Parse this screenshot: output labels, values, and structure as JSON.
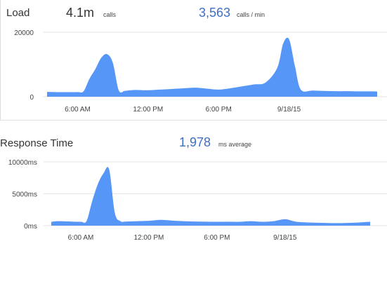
{
  "chart_data": [
    {
      "type": "area",
      "title": "Load",
      "summary": {
        "total_value": "4.1m",
        "total_unit": "calls",
        "rate_value": "3,563",
        "rate_unit": "calls / min"
      },
      "y_ticks": [
        "20000",
        "0"
      ],
      "ylim": [
        0,
        20000
      ],
      "x_ticks": [
        "6:00 AM",
        "12:00 PM",
        "6:00 PM",
        "9/18/15"
      ],
      "x_tick_hours": [
        6,
        12,
        18,
        24
      ],
      "xlim": [
        3.4,
        31.5
      ],
      "color": "#5596f7",
      "grid": true,
      "series": [
        {
          "x": [
            3.4,
            4,
            5,
            6,
            6.5,
            7,
            7.5,
            8,
            8.5,
            9,
            9.5,
            10,
            10.5,
            11,
            12,
            13,
            14,
            15,
            16,
            17,
            18,
            19,
            20,
            21,
            22,
            23,
            23.5,
            24,
            24.5,
            25,
            26,
            27,
            28,
            29,
            30,
            31,
            31.5
          ],
          "values": [
            1500,
            1450,
            1400,
            1450,
            1650,
            5500,
            8500,
            12000,
            13200,
            10500,
            2000,
            1800,
            2000,
            2100,
            2000,
            2200,
            2400,
            2600,
            2800,
            2500,
            2200,
            2600,
            3200,
            3800,
            4400,
            9000,
            16500,
            17800,
            9500,
            2200,
            1900,
            1800,
            1700,
            1700,
            1650,
            1650,
            1600
          ]
        }
      ]
    },
    {
      "type": "area",
      "title": "Response Time",
      "summary": {
        "rate_value": "1,978",
        "rate_unit": "ms average"
      },
      "y_ticks": [
        "10000ms",
        "5000ms",
        "0ms"
      ],
      "ylim": [
        0,
        10000
      ],
      "x_ticks": [
        "6:00 AM",
        "12:00 PM",
        "6:00 PM",
        "9/18/15"
      ],
      "x_tick_hours": [
        6,
        12,
        18,
        24
      ],
      "xlim": [
        3.4,
        31.5
      ],
      "color": "#5596f7",
      "grid": true,
      "series": [
        {
          "x": [
            3.4,
            4,
            5,
            6,
            6.5,
            7,
            7.5,
            8,
            8.5,
            9,
            9.5,
            10,
            11,
            12,
            13,
            14,
            15,
            16,
            17,
            18,
            19,
            20,
            21,
            22,
            23,
            24,
            25,
            26,
            27,
            28,
            29,
            30,
            31,
            31.5
          ],
          "values": [
            600,
            700,
            650,
            600,
            700,
            3800,
            6500,
            8200,
            8800,
            2000,
            700,
            650,
            700,
            750,
            900,
            800,
            700,
            650,
            620,
            600,
            620,
            600,
            700,
            600,
            700,
            1000,
            600,
            500,
            450,
            400,
            400,
            450,
            550,
            600
          ]
        }
      ]
    }
  ]
}
